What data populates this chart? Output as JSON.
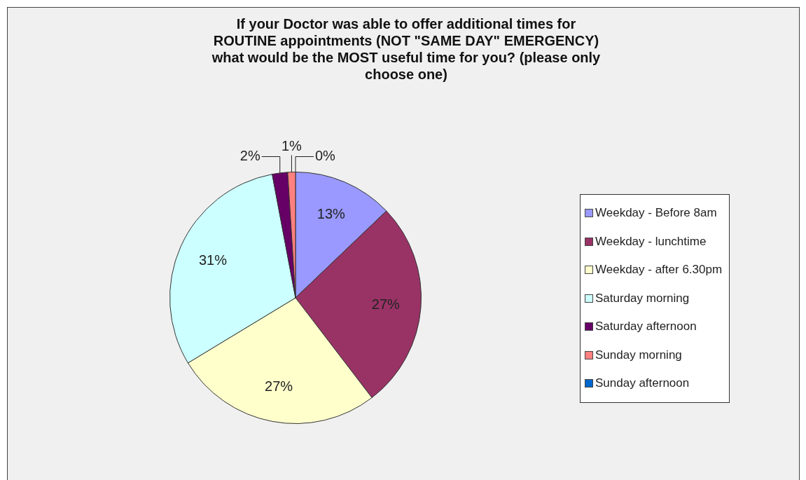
{
  "chart_data": {
    "type": "pie",
    "title": "If your Doctor was able to offer additional times for ROUTINE appointments (NOT \"SAME DAY\" EMERGENCY) what would be the MOST useful time for you? (please only choose one)",
    "categories": [
      "Weekday - Before 8am",
      "Weekday - lunchtime",
      "Weekday - after 6.30pm",
      "Saturday morning",
      "Saturday afternoon",
      "Sunday morning",
      "Sunday afternoon"
    ],
    "values": [
      13,
      27,
      27,
      31,
      2,
      1,
      0
    ],
    "value_labels": [
      "13%",
      "27%",
      "27%",
      "31%",
      "2%",
      "1%",
      "0%"
    ],
    "colors": [
      "#9999ff",
      "#993366",
      "#ffffcc",
      "#ccffff",
      "#660066",
      "#ff8080",
      "#0066cc"
    ],
    "legend": "right"
  }
}
